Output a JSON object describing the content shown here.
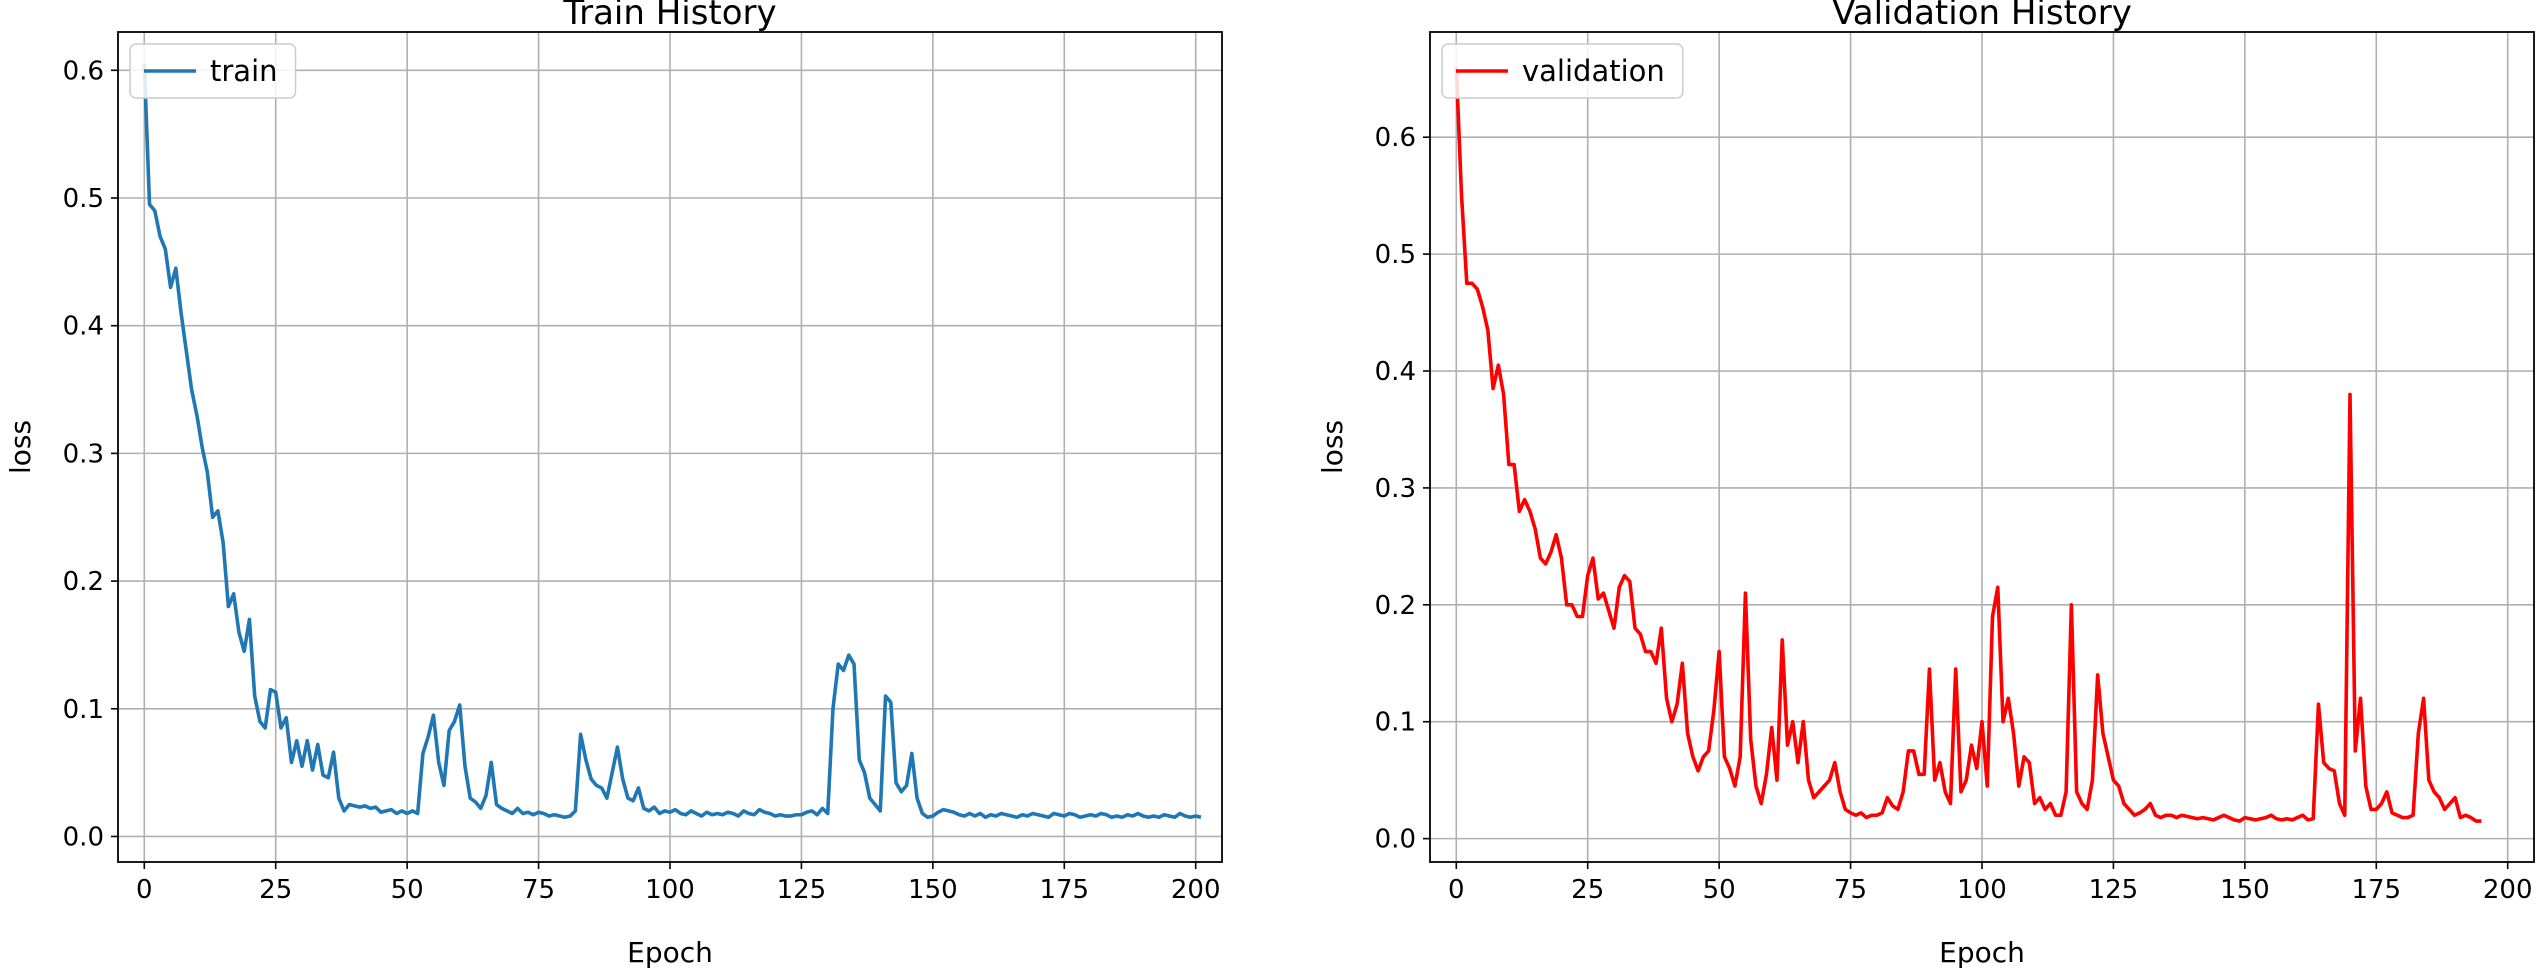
{
  "chart_data": [
    {
      "type": "line",
      "title": "Train History",
      "xlabel": "Epoch",
      "ylabel": "loss",
      "xlim": [
        -5,
        205
      ],
      "ylim": [
        -0.02,
        0.63
      ],
      "xticks": [
        0,
        25,
        50,
        75,
        100,
        125,
        150,
        175,
        200
      ],
      "yticks": [
        0.0,
        0.1,
        0.2,
        0.3,
        0.4,
        0.5,
        0.6
      ],
      "ytick_labels": [
        "0.0",
        "0.1",
        "0.2",
        "0.3",
        "0.4",
        "0.5",
        "0.6"
      ],
      "grid": true,
      "legend_position": "upper-left",
      "series": [
        {
          "name": "train",
          "color": "#1f77b4",
          "values": [
            0.605,
            0.495,
            0.49,
            0.47,
            0.46,
            0.43,
            0.445,
            0.41,
            0.38,
            0.35,
            0.33,
            0.305,
            0.285,
            0.25,
            0.255,
            0.23,
            0.18,
            0.19,
            0.16,
            0.145,
            0.17,
            0.11,
            0.09,
            0.085,
            0.115,
            0.113,
            0.085,
            0.093,
            0.058,
            0.075,
            0.055,
            0.075,
            0.052,
            0.072,
            0.048,
            0.046,
            0.066,
            0.03,
            0.02,
            0.025,
            0.024,
            0.023,
            0.024,
            0.022,
            0.023,
            0.019,
            0.02,
            0.021,
            0.018,
            0.02,
            0.018,
            0.02,
            0.018,
            0.065,
            0.078,
            0.095,
            0.058,
            0.04,
            0.083,
            0.09,
            0.103,
            0.055,
            0.03,
            0.027,
            0.022,
            0.032,
            0.058,
            0.025,
            0.022,
            0.02,
            0.018,
            0.022,
            0.018,
            0.019,
            0.017,
            0.019,
            0.018,
            0.016,
            0.017,
            0.016,
            0.015,
            0.016,
            0.02,
            0.08,
            0.06,
            0.045,
            0.04,
            0.038,
            0.03,
            0.05,
            0.07,
            0.045,
            0.03,
            0.028,
            0.038,
            0.022,
            0.02,
            0.023,
            0.018,
            0.02,
            0.019,
            0.021,
            0.018,
            0.017,
            0.02,
            0.018,
            0.016,
            0.019,
            0.017,
            0.018,
            0.017,
            0.019,
            0.018,
            0.016,
            0.02,
            0.018,
            0.017,
            0.021,
            0.019,
            0.018,
            0.016,
            0.017,
            0.016,
            0.016,
            0.017,
            0.017,
            0.019,
            0.02,
            0.017,
            0.022,
            0.018,
            0.1,
            0.135,
            0.13,
            0.142,
            0.135,
            0.06,
            0.05,
            0.03,
            0.025,
            0.02,
            0.11,
            0.105,
            0.042,
            0.035,
            0.04,
            0.065,
            0.03,
            0.018,
            0.015,
            0.016,
            0.019,
            0.021,
            0.02,
            0.019,
            0.017,
            0.016,
            0.018,
            0.016,
            0.018,
            0.015,
            0.017,
            0.016,
            0.018,
            0.017,
            0.016,
            0.015,
            0.017,
            0.016,
            0.018,
            0.017,
            0.016,
            0.015,
            0.018,
            0.017,
            0.016,
            0.018,
            0.017,
            0.015,
            0.016,
            0.017,
            0.016,
            0.018,
            0.017,
            0.015,
            0.016,
            0.015,
            0.017,
            0.016,
            0.018,
            0.016,
            0.015,
            0.016,
            0.015,
            0.017,
            0.016,
            0.015,
            0.018,
            0.016,
            0.015,
            0.016,
            0.015
          ]
        }
      ]
    },
    {
      "type": "line",
      "title": "Validation History",
      "xlabel": "Epoch",
      "ylabel": "loss",
      "xlim": [
        -5,
        205
      ],
      "ylim": [
        -0.02,
        0.69
      ],
      "xticks": [
        0,
        25,
        50,
        75,
        100,
        125,
        150,
        175,
        200
      ],
      "yticks": [
        0.0,
        0.1,
        0.2,
        0.3,
        0.4,
        0.5,
        0.6
      ],
      "ytick_labels": [
        "0.0",
        "0.1",
        "0.2",
        "0.3",
        "0.4",
        "0.5",
        "0.6"
      ],
      "grid": true,
      "legend_position": "upper-left",
      "series": [
        {
          "name": "validation",
          "color": "#ff0000",
          "values": [
            0.66,
            0.55,
            0.475,
            0.475,
            0.47,
            0.455,
            0.435,
            0.385,
            0.405,
            0.38,
            0.32,
            0.32,
            0.28,
            0.29,
            0.28,
            0.265,
            0.24,
            0.235,
            0.245,
            0.26,
            0.24,
            0.2,
            0.2,
            0.19,
            0.19,
            0.225,
            0.24,
            0.205,
            0.21,
            0.195,
            0.18,
            0.215,
            0.225,
            0.22,
            0.18,
            0.175,
            0.16,
            0.16,
            0.15,
            0.18,
            0.12,
            0.1,
            0.115,
            0.15,
            0.09,
            0.07,
            0.058,
            0.07,
            0.075,
            0.11,
            0.16,
            0.07,
            0.06,
            0.045,
            0.07,
            0.21,
            0.085,
            0.045,
            0.03,
            0.055,
            0.095,
            0.05,
            0.17,
            0.08,
            0.1,
            0.065,
            0.1,
            0.05,
            0.035,
            0.04,
            0.045,
            0.05,
            0.065,
            0.04,
            0.025,
            0.022,
            0.02,
            0.022,
            0.018,
            0.02,
            0.02,
            0.022,
            0.035,
            0.028,
            0.025,
            0.04,
            0.075,
            0.075,
            0.055,
            0.055,
            0.145,
            0.05,
            0.065,
            0.04,
            0.03,
            0.145,
            0.04,
            0.05,
            0.08,
            0.06,
            0.1,
            0.045,
            0.19,
            0.215,
            0.1,
            0.12,
            0.09,
            0.045,
            0.07,
            0.065,
            0.03,
            0.035,
            0.025,
            0.03,
            0.02,
            0.02,
            0.04,
            0.2,
            0.04,
            0.03,
            0.025,
            0.05,
            0.14,
            0.09,
            0.07,
            0.05,
            0.045,
            0.03,
            0.025,
            0.02,
            0.022,
            0.025,
            0.03,
            0.02,
            0.018,
            0.02,
            0.02,
            0.018,
            0.02,
            0.019,
            0.018,
            0.017,
            0.018,
            0.017,
            0.016,
            0.018,
            0.02,
            0.018,
            0.016,
            0.015,
            0.018,
            0.017,
            0.016,
            0.017,
            0.018,
            0.02,
            0.017,
            0.016,
            0.017,
            0.016,
            0.018,
            0.02,
            0.016,
            0.017,
            0.115,
            0.065,
            0.06,
            0.058,
            0.03,
            0.02,
            0.38,
            0.075,
            0.12,
            0.045,
            0.025,
            0.025,
            0.03,
            0.04,
            0.022,
            0.02,
            0.018,
            0.018,
            0.02,
            0.09,
            0.12,
            0.05,
            0.04,
            0.035,
            0.025,
            0.03,
            0.035,
            0.018,
            0.02,
            0.018,
            0.015,
            0.015
          ]
        }
      ]
    }
  ]
}
